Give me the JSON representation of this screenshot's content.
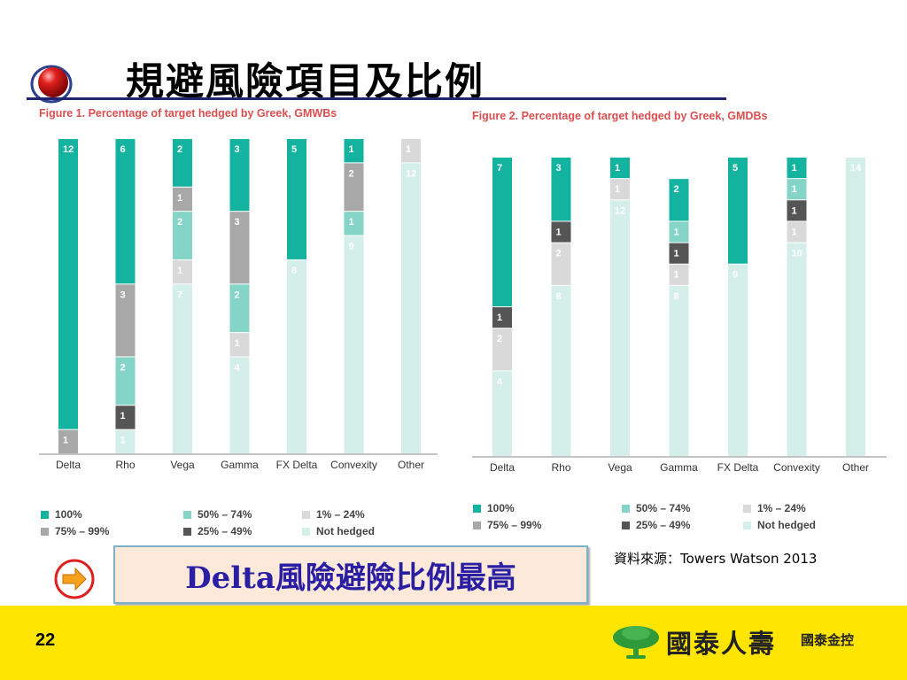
{
  "slide": {
    "title": "規避風險項目及比例",
    "source": "資料來源：Towers Watson 2013",
    "callout": "Delta風險避險比例最高",
    "page_number": "22",
    "logo_name": "國泰人壽",
    "logo_sub": "國泰金控",
    "icons": [
      "red-sphere-bullet-icon",
      "arrow-right-icon",
      "tree-logo-icon"
    ]
  },
  "colors": {
    "100%": "#14b3a0",
    "75% – 99%": "#a8a8a8",
    "50% – 74%": "#84d4c8",
    "25% – 49%": "#555555",
    "1% – 24%": "#d9d9d9",
    "Not hedged": "#d4eeea",
    "title_line": "#22256e",
    "figure_title": "#d94f4f",
    "footer": "#ffe500"
  },
  "legend": {
    "items": [
      "100%",
      "75% – 99%",
      "50% – 74%",
      "25% – 49%",
      "1% – 24%",
      "Not hedged"
    ]
  },
  "chart_data": [
    {
      "type": "bar",
      "stacked": true,
      "title": "Figure 1. Percentage of target hedged by Greek, GMWBs",
      "categories": [
        "Delta",
        "Rho",
        "Vega",
        "Gamma",
        "FX Delta",
        "Convexity",
        "Other"
      ],
      "series": [
        {
          "name": "100%",
          "values": [
            12,
            6,
            2,
            3,
            5,
            1,
            0
          ]
        },
        {
          "name": "75% – 99%",
          "values": [
            1,
            3,
            1,
            3,
            0,
            2,
            0
          ]
        },
        {
          "name": "50% – 74%",
          "values": [
            0,
            2,
            2,
            2,
            0,
            1,
            0
          ]
        },
        {
          "name": "25% – 49%",
          "values": [
            0,
            1,
            0,
            0,
            0,
            0,
            0
          ]
        },
        {
          "name": "1% – 24%",
          "values": [
            0,
            0,
            1,
            1,
            0,
            0,
            1
          ]
        },
        {
          "name": "Not hedged",
          "values": [
            0,
            1,
            7,
            4,
            8,
            9,
            12
          ]
        }
      ],
      "legend": "bottom"
    },
    {
      "type": "bar",
      "stacked": true,
      "title": "Figure 2. Percentage of target hedged by Greek, GMDBs",
      "categories": [
        "Delta",
        "Rho",
        "Vega",
        "Gamma",
        "FX Delta",
        "Convexity",
        "Other"
      ],
      "series": [
        {
          "name": "100%",
          "values": [
            7,
            3,
            1,
            2,
            5,
            1,
            0
          ]
        },
        {
          "name": "75% – 99%",
          "values": [
            0,
            0,
            0,
            0,
            0,
            0,
            0
          ]
        },
        {
          "name": "50% – 74%",
          "values": [
            0,
            0,
            0,
            1,
            0,
            1,
            0
          ]
        },
        {
          "name": "25% – 49%",
          "values": [
            1,
            1,
            0,
            1,
            0,
            1,
            0
          ]
        },
        {
          "name": "1% – 24%",
          "values": [
            2,
            2,
            1,
            1,
            0,
            1,
            0
          ]
        },
        {
          "name": "Not hedged",
          "values": [
            4,
            8,
            12,
            8,
            9,
            10,
            14
          ]
        }
      ],
      "legend": "bottom"
    }
  ]
}
